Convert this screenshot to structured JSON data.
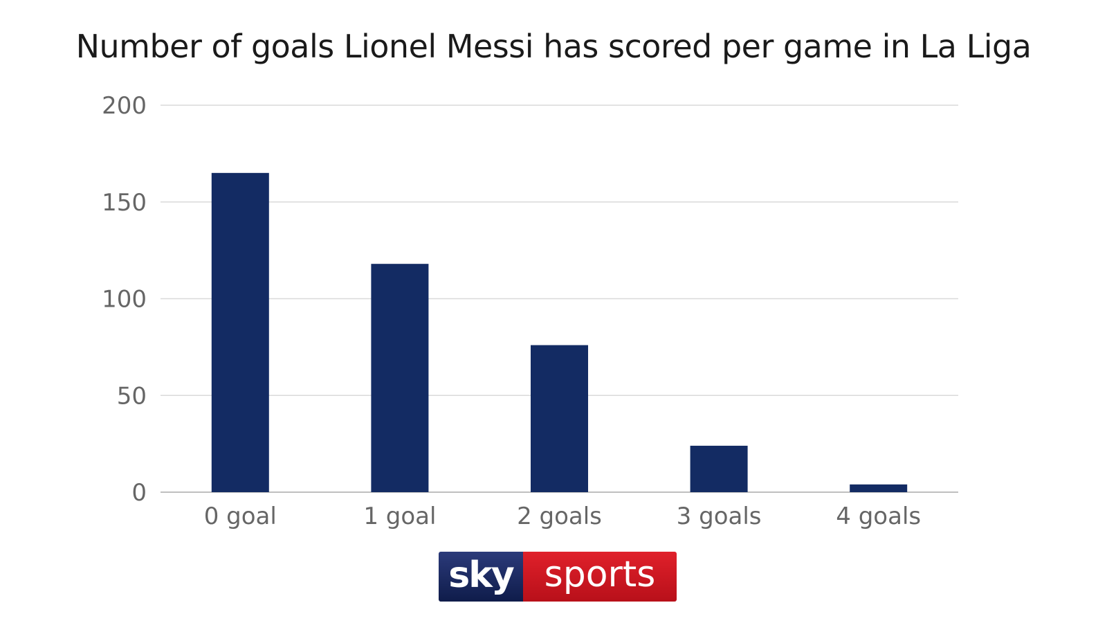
{
  "chart_data": {
    "type": "bar",
    "title": "Number of goals Lionel Messi has scored per game in La Liga",
    "categories": [
      "0 goal",
      "1 goal",
      "2 goals",
      "3 goals",
      "4 goals"
    ],
    "values": [
      165,
      118,
      76,
      24,
      4
    ],
    "xlabel": "",
    "ylabel": "",
    "ylim": [
      0,
      200
    ],
    "yticks": [
      0,
      50,
      100,
      150,
      200
    ],
    "grid": true,
    "bar_color": "#132b63"
  },
  "logo": {
    "sky": "sky",
    "sports": "sports"
  }
}
